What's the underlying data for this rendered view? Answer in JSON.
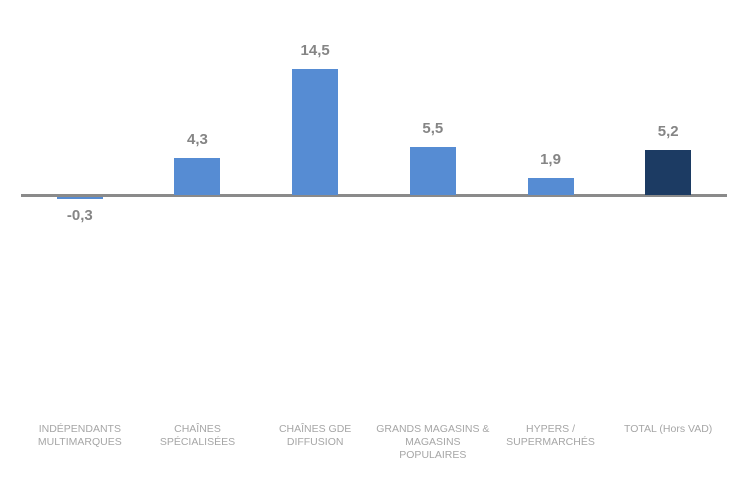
{
  "chart_data": {
    "type": "bar",
    "title": "",
    "xlabel": "",
    "ylabel": "",
    "grid": false,
    "legend": "none",
    "ylim": [
      -1,
      16
    ],
    "baseline_value": 0,
    "decimal_separator": ",",
    "categories": [
      "INDÉPENDANTS MULTIMARQUES",
      "CHAÎNES SPÉCIALISÉES",
      "CHAÎNES GDE DIFFUSION",
      "GRANDS MAGASINS & MAGASINS POPULAIRES",
      "HYPERS / SUPERMARCHÉS",
      "TOTAL (Hors VAD)"
    ],
    "category_label_lines": [
      [
        "INDÉPENDANTS",
        "MULTIMARQUES"
      ],
      [
        "CHAÎNES",
        "SPÉCIALISÉES"
      ],
      [
        "CHAÎNES GDE",
        "DIFFUSION"
      ],
      [
        "GRANDS MAGASINS &",
        "MAGASINS",
        "POPULAIRES"
      ],
      [
        "HYPERS /",
        "SUPERMARCHÉS"
      ],
      [
        "TOTAL (Hors VAD)"
      ]
    ],
    "values": [
      -0.3,
      4.3,
      14.5,
      5.5,
      1.9,
      5.2
    ],
    "value_labels": [
      "-0,3",
      "4,3",
      "14,5",
      "5,5",
      "1,9",
      "5,2"
    ],
    "bar_colors": [
      "#568CD3",
      "#568CD3",
      "#568CD3",
      "#568CD3",
      "#568CD3",
      "#1C3B63"
    ]
  },
  "style": {
    "series_color": "#568CD3",
    "total_series_color": "#1C3B63",
    "axis_line_color": "#8A8A8A",
    "value_label_color": "#858585",
    "category_label_color": "#A6A6A6",
    "background_color": "#FFFFFF"
  }
}
